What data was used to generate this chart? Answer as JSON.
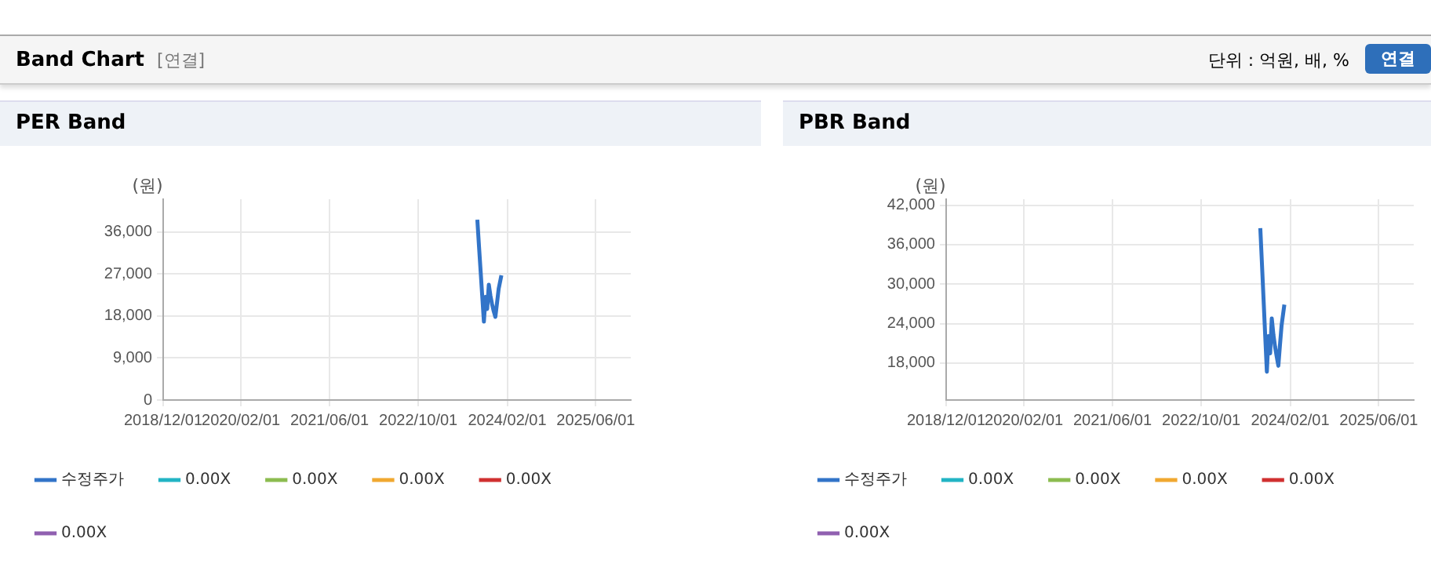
{
  "chart_data": [
    {
      "type": "line",
      "title": "PER Band",
      "ylabel": "(원)",
      "annotations": [
        "Band Chart",
        "[연결]",
        "단위 : 억원, 배, %",
        "연결"
      ],
      "x": [
        "2023-08-21",
        "2023-08-30",
        "2023-09-08",
        "2023-09-17",
        "2023-09-26",
        "2023-10-05",
        "2023-10-14",
        "2023-10-23",
        "2023-11-01",
        "2023-11-10",
        "2023-11-19",
        "2023-11-28",
        "2023-12-07",
        "2023-12-16",
        "2023-12-31"
      ],
      "series": [
        {
          "name": "수정주가",
          "color": "#3274c8",
          "values": [
            38600,
            33000,
            27600,
            22200,
            16800,
            22100,
            19500,
            24700,
            22300,
            20500,
            19000,
            17800,
            20800,
            23800,
            26700
          ]
        },
        {
          "name": "0.00X",
          "color": "#22b4c4",
          "values": [
            null,
            null,
            null,
            null,
            null,
            null,
            null,
            null,
            null,
            null,
            null,
            null,
            null,
            null,
            null
          ]
        },
        {
          "name": "0.00X",
          "color": "#8cbc50",
          "values": [
            null,
            null,
            null,
            null,
            null,
            null,
            null,
            null,
            null,
            null,
            null,
            null,
            null,
            null,
            null
          ]
        },
        {
          "name": "0.00X",
          "color": "#f0a830",
          "values": [
            null,
            null,
            null,
            null,
            null,
            null,
            null,
            null,
            null,
            null,
            null,
            null,
            null,
            null,
            null
          ]
        },
        {
          "name": "0.00X",
          "color": "#d03030",
          "values": [
            null,
            null,
            null,
            null,
            null,
            null,
            null,
            null,
            null,
            null,
            null,
            null,
            null,
            null,
            null
          ]
        },
        {
          "name": "0.00X",
          "color": "#9060b0",
          "values": [
            null,
            null,
            null,
            null,
            null,
            null,
            null,
            null,
            null,
            null,
            null,
            null,
            null,
            null,
            null
          ]
        }
      ],
      "xlim": [
        "2018-12-01",
        "2025-12-10"
      ],
      "xticks": [
        {
          "value": "2018-12-01",
          "label": "2018/12/01"
        },
        {
          "value": "2020-02-01",
          "label": "2020/02/01"
        },
        {
          "value": "2021-06-01",
          "label": "2021/06/01"
        },
        {
          "value": "2022-10-01",
          "label": "2022/10/01"
        },
        {
          "value": "2024-02-01",
          "label": "2024/02/01"
        },
        {
          "value": "2025-06-01",
          "label": "2025/06/01"
        }
      ],
      "ylim": [
        0,
        43000
      ],
      "yticks": [
        0,
        {
          "value": 9000,
          "label": "9,000"
        },
        {
          "value": 18000,
          "label": "18,000"
        },
        {
          "value": 27000,
          "label": "27,000"
        },
        {
          "value": 36000,
          "label": "36,000"
        }
      ],
      "grid": true,
      "legend": "bottom",
      "marker": "none",
      "line_style": "solid"
    },
    {
      "type": "line",
      "title": "PBR Band",
      "ylabel": "(원)",
      "x": [
        "2023-08-21",
        "2023-08-30",
        "2023-09-08",
        "2023-09-17",
        "2023-09-26",
        "2023-10-05",
        "2023-10-14",
        "2023-10-23",
        "2023-11-01",
        "2023-11-10",
        "2023-11-19",
        "2023-11-28",
        "2023-12-07",
        "2023-12-16",
        "2023-12-31"
      ],
      "series": [
        {
          "name": "수정주가",
          "color": "#3274c8",
          "values": [
            38500,
            33100,
            27600,
            22100,
            16700,
            22100,
            19500,
            24800,
            22300,
            20500,
            19000,
            17600,
            20800,
            23800,
            26900
          ]
        },
        {
          "name": "0.00X",
          "color": "#22b4c4",
          "values": [
            null,
            null,
            null,
            null,
            null,
            null,
            null,
            null,
            null,
            null,
            null,
            null,
            null,
            null,
            null
          ]
        },
        {
          "name": "0.00X",
          "color": "#8cbc50",
          "values": [
            null,
            null,
            null,
            null,
            null,
            null,
            null,
            null,
            null,
            null,
            null,
            null,
            null,
            null,
            null
          ]
        },
        {
          "name": "0.00X",
          "color": "#f0a830",
          "values": [
            null,
            null,
            null,
            null,
            null,
            null,
            null,
            null,
            null,
            null,
            null,
            null,
            null,
            null,
            null
          ]
        },
        {
          "name": "0.00X",
          "color": "#d03030",
          "values": [
            null,
            null,
            null,
            null,
            null,
            null,
            null,
            null,
            null,
            null,
            null,
            null,
            null,
            null,
            null
          ]
        },
        {
          "name": "0.00X",
          "color": "#9060b0",
          "values": [
            null,
            null,
            null,
            null,
            null,
            null,
            null,
            null,
            null,
            null,
            null,
            null,
            null,
            null,
            null
          ]
        }
      ],
      "xlim": [
        "2018-12-01",
        "2025-12-10"
      ],
      "xticks": [
        {
          "value": "2018-12-01",
          "label": "2018/12/01"
        },
        {
          "value": "2020-02-01",
          "label": "2020/02/01"
        },
        {
          "value": "2021-06-01",
          "label": "2021/06/01"
        },
        {
          "value": "2022-10-01",
          "label": "2022/10/01"
        },
        {
          "value": "2024-02-01",
          "label": "2024/02/01"
        },
        {
          "value": "2025-06-01",
          "label": "2025/06/01"
        }
      ],
      "ylim": [
        12400,
        42900
      ],
      "yticks": [
        {
          "value": 18000,
          "label": "18,000"
        },
        {
          "value": 24000,
          "label": "24,000"
        },
        {
          "value": 30000,
          "label": "30,000"
        },
        {
          "value": 36000,
          "label": "36,000"
        },
        {
          "value": 42000,
          "label": "42,000"
        }
      ],
      "grid": true,
      "legend": "bottom",
      "marker": "none",
      "line_style": "solid"
    }
  ]
}
